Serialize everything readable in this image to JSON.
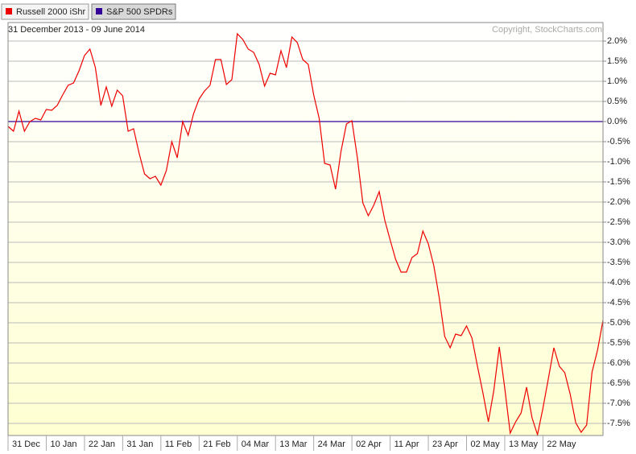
{
  "chart_data": {
    "type": "line",
    "legend": [
      "Russell 2000 iShr",
      "S&P 500 SPDRs"
    ],
    "subtitle": "31 December 2013 - 09 June 2014",
    "annotation": "Copyright, StockCharts.com",
    "categories": [
      "31 Dec",
      null,
      null,
      null,
      null,
      null,
      null,
      "10 Jan",
      null,
      null,
      null,
      null,
      null,
      null,
      "22 Jan",
      null,
      null,
      null,
      null,
      null,
      null,
      "31 Jan",
      null,
      null,
      null,
      null,
      null,
      null,
      "11 Feb",
      null,
      null,
      null,
      null,
      null,
      null,
      "21 Feb",
      null,
      null,
      null,
      null,
      null,
      null,
      "04 Mar",
      null,
      null,
      null,
      null,
      null,
      null,
      "13 Mar",
      null,
      null,
      null,
      null,
      null,
      null,
      "24 Mar",
      null,
      null,
      null,
      null,
      null,
      null,
      "02 Apr",
      null,
      null,
      null,
      null,
      null,
      null,
      "11 Apr",
      null,
      null,
      null,
      null,
      null,
      null,
      "23 Apr",
      null,
      null,
      null,
      null,
      null,
      null,
      "02 May",
      null,
      null,
      null,
      null,
      null,
      null,
      "13 May",
      null,
      null,
      null,
      null,
      null,
      null,
      "22 May",
      null,
      null,
      null,
      null,
      null,
      null,
      null,
      null,
      null,
      null,
      null
    ],
    "series": [
      {
        "name": "Russell 2000 iShr",
        "color": "#ee0000",
        "values": [
          -0.12,
          -0.24,
          0.26,
          -0.24,
          0,
          0.08,
          0.04,
          0.3,
          0.28,
          0.4,
          0.66,
          0.9,
          0.96,
          1.26,
          1.64,
          1.8,
          1.34,
          0.4,
          0.86,
          0.38,
          0.78,
          0.64,
          -0.24,
          -0.18,
          -0.78,
          -1.3,
          -1.42,
          -1.36,
          -1.58,
          -1.22,
          -0.5,
          -0.9,
          0,
          -0.34,
          0.2,
          0.56,
          0.76,
          0.9,
          1.54,
          1.54,
          0.92,
          1.04,
          2.18,
          2.04,
          1.8,
          1.72,
          1.42,
          0.88,
          1.2,
          1.16,
          1.76,
          1.34,
          2.1,
          1.96,
          1.54,
          1.42,
          0.66,
          0.08,
          -1.04,
          -1.08,
          -1.68,
          -0.74,
          -0.06,
          0.02,
          -0.9,
          -2.02,
          -2.34,
          -2.08,
          -1.74,
          -2.44,
          -2.94,
          -3.42,
          -3.74,
          -3.74,
          -3.38,
          -3.28,
          -2.72,
          -3.04,
          -3.58,
          -4.38,
          -5.34,
          -5.62,
          -5.28,
          -5.32,
          -5.08,
          -5.38,
          -6.08,
          -6.74,
          -7.46,
          -6.68,
          -5.6,
          -6.62,
          -7.74,
          -7.46,
          -7.24,
          -6.6,
          -7.36,
          -7.78,
          -7.12,
          -6.38,
          -5.62,
          -6.08,
          -6.24,
          -6.78,
          -7.48,
          -7.72,
          -7.54,
          -6.22,
          -5.68,
          -4.94
        ]
      },
      {
        "name": "S&P 500 SPDRs",
        "color": "#330099",
        "values": [
          0,
          0,
          0,
          0,
          0,
          0,
          0,
          0,
          0,
          0,
          0,
          0,
          0,
          0,
          0,
          0,
          0,
          0,
          0,
          0,
          0,
          0,
          0,
          0,
          0,
          0,
          0,
          0,
          0,
          0,
          0,
          0,
          0,
          0,
          0,
          0,
          0,
          0,
          0,
          0,
          0,
          0,
          0,
          0,
          0,
          0,
          0,
          0,
          0,
          0,
          0,
          0,
          0,
          0,
          0,
          0,
          0,
          0,
          0,
          0,
          0,
          0,
          0,
          0,
          0,
          0,
          0,
          0,
          0,
          0,
          0,
          0,
          0,
          0,
          0,
          0,
          0,
          0,
          0,
          0,
          0,
          0,
          0,
          0,
          0,
          0,
          0,
          0,
          0,
          0,
          0,
          0,
          0,
          0,
          0,
          0,
          0,
          0,
          0,
          0,
          0,
          0,
          0,
          0,
          0,
          0,
          0,
          0,
          0,
          0
        ]
      }
    ],
    "ylim": [
      -7.8,
      2.46
    ],
    "yticks": [
      {
        "value": 2.0,
        "label": "2.0%"
      },
      {
        "value": 1.5,
        "label": "1.5%"
      },
      {
        "value": 1.0,
        "label": "1.0%"
      },
      {
        "value": 0.5,
        "label": "0.5%"
      },
      {
        "value": 0,
        "label": "0.0%"
      },
      {
        "value": -0.5,
        "label": "-0.5%"
      },
      {
        "value": -1.0,
        "label": "-1.0%"
      },
      {
        "value": -1.5,
        "label": "-1.5%"
      },
      {
        "value": -2.0,
        "label": "-2.0%"
      },
      {
        "value": -2.5,
        "label": "-2.5%"
      },
      {
        "value": -3.0,
        "label": "-3.0%"
      },
      {
        "value": -3.5,
        "label": "-3.5%"
      },
      {
        "value": -4.0,
        "label": "-4.0%"
      },
      {
        "value": -4.5,
        "label": "-4.5%"
      },
      {
        "value": -5.0,
        "label": "-5.0%"
      },
      {
        "value": -5.5,
        "label": "-5.5%"
      },
      {
        "value": -6.0,
        "label": "-6.0%"
      },
      {
        "value": -6.5,
        "label": "-6.5%"
      },
      {
        "value": -7.0,
        "label": "-7.0%"
      },
      {
        "value": -7.5,
        "label": "-7.5%"
      }
    ],
    "grid": true
  }
}
